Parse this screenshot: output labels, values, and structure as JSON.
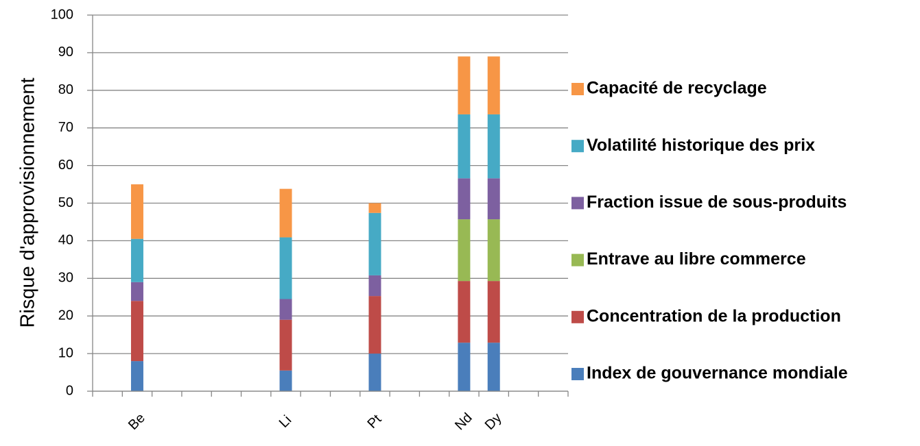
{
  "chart_data": {
    "type": "stacked-bar",
    "ylabel": "Risque d'approvisionnement",
    "categories": [
      null,
      "Be",
      null,
      null,
      null,
      null,
      "Li",
      null,
      null,
      "Pt",
      null,
      null,
      "Nd",
      "Dy",
      null,
      null
    ],
    "series": [
      {
        "name": "Index de gouvernance mondiale",
        "color": "#4a7ebb",
        "values": [
          null,
          8,
          null,
          null,
          null,
          null,
          5.5,
          null,
          null,
          10,
          null,
          null,
          12.9,
          12.9,
          null,
          null
        ]
      },
      {
        "name": "Concentration de la production",
        "color": "#be4b48",
        "values": [
          null,
          16,
          null,
          null,
          null,
          null,
          13.5,
          null,
          null,
          15.3,
          null,
          null,
          16.4,
          16.4,
          null,
          null
        ]
      },
      {
        "name": "Entrave au libre commerce",
        "color": "#98b954",
        "values": [
          null,
          0,
          null,
          null,
          null,
          null,
          0,
          null,
          null,
          0,
          null,
          null,
          16.4,
          16.4,
          null,
          null
        ]
      },
      {
        "name": "Fraction issue de sous-produits",
        "color": "#7d60a0",
        "values": [
          null,
          5,
          null,
          null,
          null,
          null,
          5.5,
          null,
          null,
          5.5,
          null,
          null,
          10.9,
          10.9,
          null,
          null
        ]
      },
      {
        "name": "Volatilité historique des prix",
        "color": "#46aac5",
        "values": [
          null,
          11.5,
          null,
          null,
          null,
          null,
          16.4,
          null,
          null,
          16.6,
          null,
          null,
          17,
          17,
          null,
          null
        ]
      },
      {
        "name": "Capacité de recyclage",
        "color": "#f79646",
        "values": [
          null,
          14.5,
          null,
          null,
          null,
          null,
          12.9,
          null,
          null,
          2.6,
          null,
          null,
          15.4,
          15.4,
          null,
          null
        ]
      }
    ],
    "ylim": [
      0,
      100
    ],
    "yticks": [
      0,
      10,
      20,
      30,
      40,
      50,
      60,
      70,
      80,
      90,
      100
    ],
    "grid": true,
    "legend": "right"
  }
}
